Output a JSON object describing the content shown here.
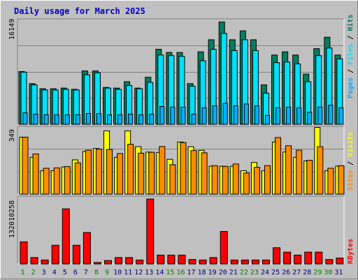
{
  "chart_data": {
    "type": "bar",
    "title": "Daily usage for March 2025",
    "days": [
      "1",
      "2",
      "3",
      "4",
      "5",
      "6",
      "7",
      "8",
      "9",
      "10",
      "11",
      "12",
      "13",
      "14",
      "15",
      "16",
      "17",
      "18",
      "19",
      "20",
      "21",
      "22",
      "23",
      "24",
      "25",
      "26",
      "27",
      "28",
      "29",
      "30",
      "31"
    ],
    "weekend_days": [
      "1",
      "2",
      "8",
      "9",
      "15",
      "16",
      "22",
      "23",
      "29",
      "30"
    ],
    "colors": {
      "hits": "#007f5f",
      "files": "#00e0ff",
      "pages": "#00b0ff",
      "visits": "#ffff00",
      "sites": "#ff8c00",
      "kbytes": "#ff0000",
      "weekday_label": "#000080",
      "weekend_label": "#008000"
    },
    "panels": {
      "top": {
        "ymax_label": "16149",
        "ymax": 16149,
        "legend": [
          "Hits",
          "Files",
          "Pages"
        ],
        "series": {
          "Hits": [
            8300,
            6400,
            5600,
            5600,
            5700,
            5500,
            8400,
            8400,
            5800,
            5700,
            6700,
            5700,
            7400,
            11800,
            11300,
            11300,
            6400,
            11400,
            13300,
            16100,
            13300,
            14700,
            13300,
            6200,
            10900,
            11400,
            10900,
            7900,
            11900,
            13700,
            10900
          ],
          "Files": [
            8200,
            6200,
            5400,
            5400,
            5500,
            5400,
            7800,
            8100,
            5700,
            5500,
            6100,
            5600,
            6600,
            10900,
            10800,
            10700,
            6000,
            10000,
            11800,
            14300,
            11600,
            13300,
            11600,
            4900,
            9700,
            9800,
            9500,
            6700,
            10800,
            12000,
            10300
          ],
          "Pages": [
            1800,
            1600,
            1500,
            1500,
            1500,
            1500,
            1700,
            1700,
            1500,
            1500,
            1600,
            1500,
            1600,
            2800,
            2700,
            2700,
            1600,
            2600,
            2900,
            3300,
            2900,
            3200,
            2900,
            1400,
            2600,
            2700,
            2600,
            1900,
            2700,
            3000,
            2600
          ]
        }
      },
      "middle": {
        "ymax_label": "349",
        "ymax": 349,
        "legend": [
          "Visits",
          "Sites"
        ],
        "series": {
          "Visits": [
            306,
            198,
            126,
            126,
            146,
            184,
            229,
            245,
            340,
            198,
            340,
            255,
            226,
            224,
            187,
            280,
            255,
            235,
            150,
            150,
            150,
            126,
            170,
            126,
            280,
            226,
            198,
            178,
            358,
            126,
            150
          ],
          "Sites": [
            306,
            216,
            139,
            141,
            148,
            168,
            236,
            242,
            240,
            218,
            268,
            220,
            225,
            256,
            158,
            277,
            234,
            222,
            153,
            149,
            162,
            113,
            144,
            153,
            304,
            260,
            236,
            182,
            255,
            139,
            153
          ]
        }
      },
      "bottom": {
        "ymax_label": "132010258",
        "ymax": 132010258,
        "legend": [
          "KBytes"
        ],
        "series": {
          "KBytes": [
            45000000,
            13000000,
            8000000,
            38000000,
            112000000,
            38000000,
            64000000,
            3000000,
            7000000,
            13000000,
            13000000,
            8000000,
            132010258,
            18000000,
            18000000,
            18000000,
            9000000,
            8000000,
            13000000,
            66000000,
            8000000,
            8000000,
            8000000,
            8000000,
            33000000,
            24000000,
            18000000,
            24000000,
            24000000,
            9000000,
            12000000
          ]
        }
      }
    }
  }
}
